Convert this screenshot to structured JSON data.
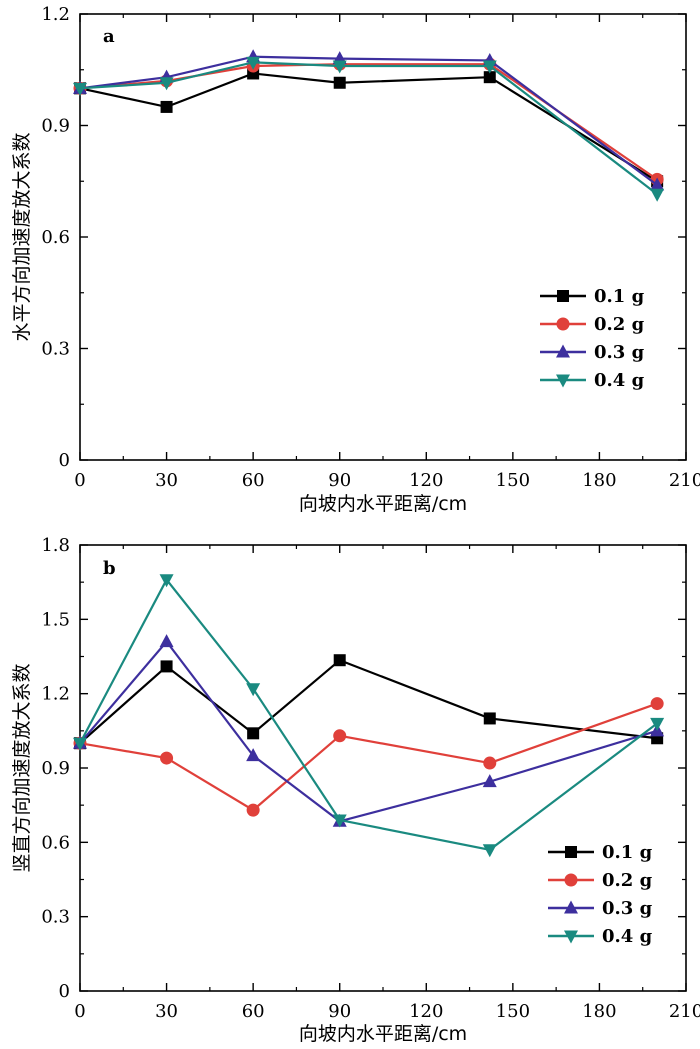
{
  "chart_data": [
    {
      "type": "line",
      "panel_label": "a",
      "xlabel": "向坡内水平距离/cm",
      "ylabel": "水平方向加速度放大系数",
      "xlim": [
        0,
        210
      ],
      "ylim": [
        0,
        1.2
      ],
      "xticks": [
        0,
        30,
        60,
        90,
        120,
        150,
        180,
        210
      ],
      "yticks": [
        0,
        0.3,
        0.6,
        0.9,
        1.2
      ],
      "x_tick_labels": [
        "0",
        "30",
        "60",
        "90",
        "120",
        "150",
        "180",
        "210"
      ],
      "y_tick_labels": [
        "0",
        "0.3",
        "0.6",
        "0.9",
        "1.2"
      ],
      "legend_position": "lower-right",
      "series": [
        {
          "name": "0.1 g",
          "color": "#000000",
          "marker": "square",
          "x": [
            0,
            30,
            60,
            90,
            142,
            200
          ],
          "y": [
            1.0,
            0.95,
            1.04,
            1.015,
            1.03,
            0.75
          ]
        },
        {
          "name": "0.2 g",
          "color": "#e0403a",
          "marker": "circle",
          "x": [
            0,
            30,
            60,
            90,
            142,
            200
          ],
          "y": [
            1.0,
            1.02,
            1.06,
            1.065,
            1.065,
            0.755
          ]
        },
        {
          "name": "0.3 g",
          "color": "#3d2f9e",
          "marker": "triangle-up",
          "x": [
            0,
            30,
            60,
            90,
            142,
            200
          ],
          "y": [
            1.0,
            1.03,
            1.085,
            1.08,
            1.075,
            0.74
          ]
        },
        {
          "name": "0.4 g",
          "color": "#1a8a80",
          "marker": "triangle-down",
          "x": [
            0,
            30,
            60,
            90,
            142,
            200
          ],
          "y": [
            1.0,
            1.015,
            1.07,
            1.06,
            1.06,
            0.715
          ]
        }
      ]
    },
    {
      "type": "line",
      "panel_label": "b",
      "xlabel": "向坡内水平距离/cm",
      "ylabel": "竖直方向加速度放大系数",
      "xlim": [
        0,
        210
      ],
      "ylim": [
        0,
        1.8
      ],
      "xticks": [
        0,
        30,
        60,
        90,
        120,
        150,
        180,
        210
      ],
      "yticks": [
        0,
        0.3,
        0.6,
        0.9,
        1.2,
        1.5,
        1.8
      ],
      "x_tick_labels": [
        "0",
        "30",
        "60",
        "90",
        "120",
        "150",
        "180",
        "210"
      ],
      "y_tick_labels": [
        "0",
        "0.3",
        "0.6",
        "0.9",
        "1.2",
        "1.5",
        "1.8"
      ],
      "legend_position": "lower-right",
      "series": [
        {
          "name": "0.1 g",
          "color": "#000000",
          "marker": "square",
          "x": [
            0,
            30,
            60,
            90,
            142,
            200
          ],
          "y": [
            1.0,
            1.31,
            1.04,
            1.335,
            1.1,
            1.02
          ]
        },
        {
          "name": "0.2 g",
          "color": "#e0403a",
          "marker": "circle",
          "x": [
            0,
            30,
            60,
            90,
            142,
            200
          ],
          "y": [
            1.0,
            0.94,
            0.73,
            1.03,
            0.92,
            1.16
          ]
        },
        {
          "name": "0.3 g",
          "color": "#3d2f9e",
          "marker": "triangle-up",
          "x": [
            0,
            30,
            60,
            90,
            142,
            200
          ],
          "y": [
            1.0,
            1.41,
            0.95,
            0.685,
            0.845,
            1.05
          ]
        },
        {
          "name": "0.4 g",
          "color": "#1a8a80",
          "marker": "triangle-down",
          "x": [
            0,
            30,
            60,
            90,
            142,
            200
          ],
          "y": [
            1.0,
            1.66,
            1.22,
            0.69,
            0.57,
            1.08
          ]
        }
      ]
    }
  ]
}
